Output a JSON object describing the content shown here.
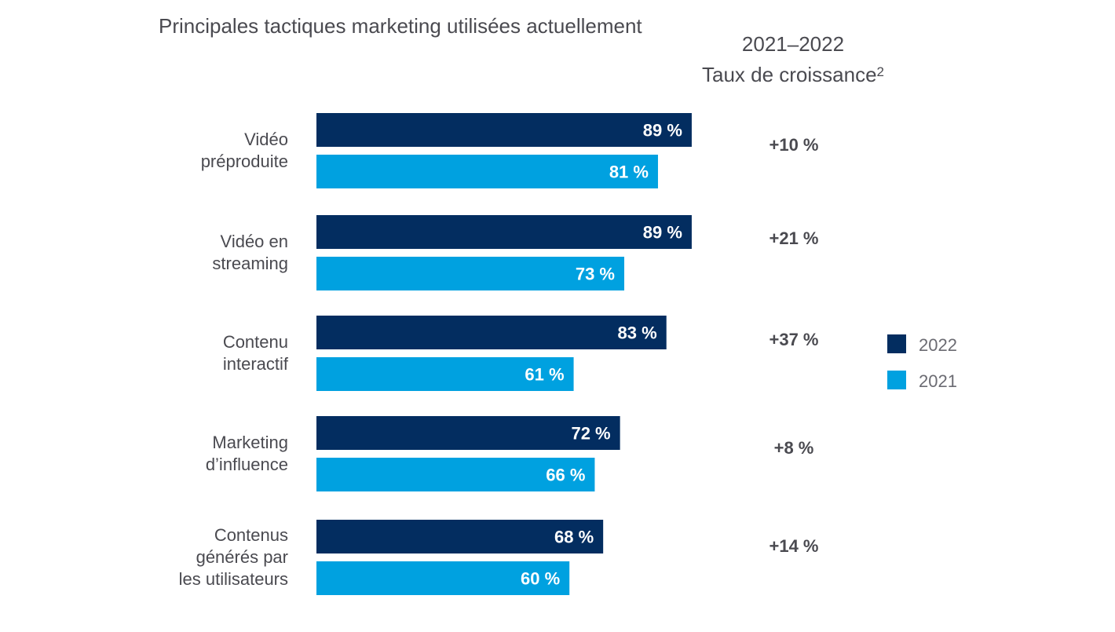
{
  "chart_data": {
    "type": "bar",
    "orientation": "horizontal",
    "title": "Principales tactiques marketing utilisées actuellement",
    "growth_header": {
      "line1": "2021–2022",
      "line2": "Taux de croissance",
      "footnote": "2"
    },
    "categories": [
      [
        "Vidéo",
        "préproduite"
      ],
      [
        "Vidéo en",
        "streaming"
      ],
      [
        "Contenu",
        "interactif"
      ],
      [
        "Marketing",
        "d’influence"
      ],
      [
        "Contenus",
        "générés par",
        "les utilisateurs"
      ]
    ],
    "series": [
      {
        "name": "2022",
        "color": "#032d60",
        "values": [
          89,
          89,
          83,
          72,
          68
        ],
        "labels": [
          "89 %",
          "89 %",
          "83 %",
          "72 %",
          "68 %"
        ]
      },
      {
        "name": "2021",
        "color": "#00a1e0",
        "values": [
          81,
          73,
          61,
          66,
          60
        ],
        "labels": [
          "81 %",
          "73 %",
          "61 %",
          "66 %",
          "60 %"
        ]
      }
    ],
    "growth_rates": [
      "+10 %",
      "+21 %",
      "+37 %",
      "+8 %",
      "+14 %"
    ],
    "xlim": [
      0,
      100
    ],
    "grid": false,
    "legend": {
      "position": "right",
      "entries": [
        "2022",
        "2021"
      ]
    }
  }
}
